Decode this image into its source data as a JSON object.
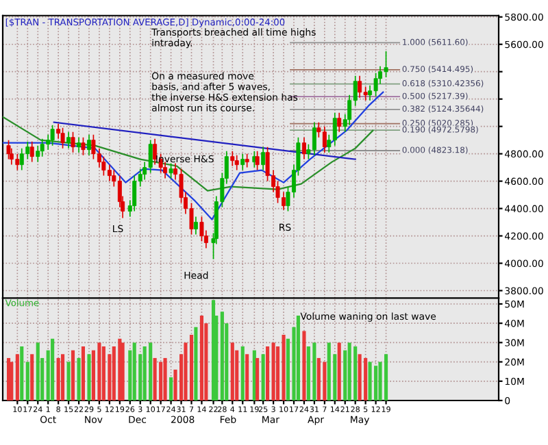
{
  "chart_data": [
    {
      "type": "candlestick",
      "title": "[$TRAN - TRANSPORTATION AVERAGE,D] Dynamic,0:00-24:00",
      "colors": [
        "#e00000",
        "#e00000",
        "#e00000",
        "#00b000",
        "#00b000",
        "#e00000",
        "#00b000",
        "#00b000",
        "#00b000",
        "#00b000",
        "#e00000",
        "#e00000",
        "#00b000",
        "#e00000",
        "#00b000",
        "#e00000",
        "#00b000",
        "#e00000",
        "#e00000",
        "#e00000",
        "#e00000",
        "#e00000",
        "#e00000",
        "#e00000",
        "#00b000",
        "#00b000",
        "#00b000",
        "#00b000",
        "#00b000",
        "#e00000",
        "#e00000",
        "#e00000",
        "#00b000",
        "#e00000",
        "#e00000",
        "#e00000",
        "#e00000",
        "#00b000",
        "#e00000",
        "#e00000",
        "#00b000",
        "#00b000",
        "#00b000",
        "#00b000",
        "#e00000",
        "#e00000",
        "#00b000",
        "#e00000",
        "#00b000",
        "#e00000",
        "#00b000",
        "#e00000",
        "#e00000",
        "#e00000",
        "#e00000",
        "#00b000",
        "#00b000",
        "#00b000",
        "#e00000",
        "#00b000",
        "#00b000",
        "#e00000",
        "#e00000",
        "#00b000",
        "#00b000",
        "#e00000",
        "#00b000",
        "#00b000",
        "#00b000",
        "#e00000",
        "#e00000",
        "#00b000",
        "#00b000",
        "#00b000",
        "#00b000"
      ],
      "grid": true,
      "tick_labels": "y",
      "x": [
        "2007-09-04",
        "2007-09-06",
        "2007-09-10",
        "2007-09-13",
        "2007-09-17",
        "2007-09-20",
        "2007-09-24",
        "2007-09-27",
        "2007-10-01",
        "2007-10-04",
        "2007-10-08",
        "2007-10-11",
        "2007-10-15",
        "2007-10-18",
        "2007-10-22",
        "2007-10-25",
        "2007-10-29",
        "2007-11-01",
        "2007-11-05",
        "2007-11-08",
        "2007-11-12",
        "2007-11-15",
        "2007-11-19",
        "2007-11-21",
        "2007-11-26",
        "2007-11-29",
        "2007-12-03",
        "2007-12-06",
        "2007-12-10",
        "2007-12-13",
        "2007-12-17",
        "2007-12-20",
        "2007-12-24",
        "2007-12-27",
        "2007-12-31",
        "2008-01-03",
        "2008-01-07",
        "2008-01-10",
        "2008-01-14",
        "2008-01-17",
        "2008-01-22",
        "2008-01-24",
        "2008-01-28",
        "2008-01-31",
        "2008-02-04",
        "2008-02-07",
        "2008-02-11",
        "2008-02-14",
        "2008-02-19",
        "2008-02-21",
        "2008-02-25",
        "2008-02-28",
        "2008-03-03",
        "2008-03-06",
        "2008-03-10",
        "2008-03-13",
        "2008-03-17",
        "2008-03-20",
        "2008-03-24",
        "2008-03-27",
        "2008-03-31",
        "2008-04-03",
        "2008-04-07",
        "2008-04-10",
        "2008-04-14",
        "2008-04-17",
        "2008-04-21",
        "2008-04-24",
        "2008-04-28",
        "2008-05-01",
        "2008-05-05",
        "2008-05-08",
        "2008-05-12",
        "2008-05-15",
        "2008-05-19"
      ],
      "ohlc": [
        [
          4860,
          4900,
          4760,
          4800
        ],
        [
          4800,
          4840,
          4720,
          4760
        ],
        [
          4760,
          4800,
          4680,
          4720
        ],
        [
          4720,
          4840,
          4680,
          4800
        ],
        [
          4800,
          4890,
          4760,
          4850
        ],
        [
          4850,
          4890,
          4740,
          4780
        ],
        [
          4780,
          4860,
          4740,
          4820
        ],
        [
          4820,
          4910,
          4780,
          4870
        ],
        [
          4870,
          4940,
          4830,
          4900
        ],
        [
          4900,
          5010,
          4860,
          4980
        ],
        [
          4980,
          5020,
          4910,
          4950
        ],
        [
          4950,
          4990,
          4840,
          4880
        ],
        [
          4880,
          4960,
          4840,
          4920
        ],
        [
          4920,
          4960,
          4810,
          4850
        ],
        [
          4850,
          4920,
          4810,
          4880
        ],
        [
          4880,
          4920,
          4790,
          4830
        ],
        [
          4830,
          4940,
          4790,
          4900
        ],
        [
          4900,
          4940,
          4760,
          4800
        ],
        [
          4800,
          4840,
          4700,
          4740
        ],
        [
          4740,
          4780,
          4640,
          4680
        ],
        [
          4680,
          4720,
          4600,
          4640
        ],
        [
          4640,
          4680,
          4560,
          4600
        ],
        [
          4600,
          4640,
          4410,
          4450
        ],
        [
          4450,
          4490,
          4330,
          4380
        ],
        [
          4380,
          4460,
          4340,
          4420
        ],
        [
          4420,
          4640,
          4380,
          4600
        ],
        [
          4600,
          4690,
          4560,
          4650
        ],
        [
          4650,
          4740,
          4610,
          4700
        ],
        [
          4700,
          4900,
          4660,
          4870
        ],
        [
          4870,
          4910,
          4720,
          4760
        ],
        [
          4760,
          4800,
          4660,
          4700
        ],
        [
          4700,
          4740,
          4620,
          4660
        ],
        [
          4660,
          4730,
          4620,
          4690
        ],
        [
          4690,
          4730,
          4610,
          4650
        ],
        [
          4650,
          4690,
          4440,
          4480
        ],
        [
          4480,
          4520,
          4360,
          4400
        ],
        [
          4400,
          4440,
          4210,
          4250
        ],
        [
          4250,
          4340,
          4210,
          4300
        ],
        [
          4300,
          4340,
          4160,
          4200
        ],
        [
          4200,
          4240,
          4110,
          4150
        ],
        [
          4150,
          4220,
          4030,
          4180
        ],
        [
          4180,
          4490,
          4140,
          4450
        ],
        [
          4450,
          4660,
          4410,
          4620
        ],
        [
          4620,
          4820,
          4580,
          4780
        ],
        [
          4780,
          4820,
          4710,
          4750
        ],
        [
          4750,
          4790,
          4680,
          4720
        ],
        [
          4720,
          4800,
          4680,
          4760
        ],
        [
          4760,
          4800,
          4700,
          4740
        ],
        [
          4740,
          4820,
          4700,
          4780
        ],
        [
          4780,
          4820,
          4680,
          4720
        ],
        [
          4720,
          4850,
          4680,
          4810
        ],
        [
          4810,
          4850,
          4600,
          4640
        ],
        [
          4640,
          4680,
          4520,
          4560
        ],
        [
          4560,
          4600,
          4440,
          4480
        ],
        [
          4480,
          4520,
          4390,
          4420
        ],
        [
          4420,
          4560,
          4380,
          4520
        ],
        [
          4520,
          4720,
          4480,
          4680
        ],
        [
          4680,
          4920,
          4640,
          4880
        ],
        [
          4880,
          4920,
          4760,
          4800
        ],
        [
          4800,
          4870,
          4760,
          4830
        ],
        [
          4830,
          5030,
          4790,
          4990
        ],
        [
          4990,
          5030,
          4920,
          4960
        ],
        [
          4960,
          5000,
          4810,
          4850
        ],
        [
          4850,
          4940,
          4810,
          4900
        ],
        [
          4900,
          5100,
          4860,
          5060
        ],
        [
          5060,
          5100,
          4960,
          5000
        ],
        [
          5000,
          5090,
          4960,
          5050
        ],
        [
          5050,
          5230,
          5010,
          5190
        ],
        [
          5190,
          5370,
          5150,
          5330
        ],
        [
          5330,
          5370,
          5210,
          5250
        ],
        [
          5250,
          5290,
          5190,
          5230
        ],
        [
          5230,
          5300,
          5190,
          5260
        ],
        [
          5260,
          5390,
          5220,
          5350
        ],
        [
          5350,
          5440,
          5310,
          5400
        ],
        [
          5400,
          5550,
          5360,
          5430
        ]
      ],
      "series": [
        {
          "type": "line",
          "color": "#2a8f2a",
          "x": [
            "2007-08-31",
            "2007-09-26",
            "2007-11-02",
            "2007-12-03",
            "2007-12-28",
            "2008-01-18",
            "2008-02-03",
            "2008-03-06",
            "2008-03-22",
            "2008-04-12",
            "2008-04-28",
            "2008-05-10"
          ],
          "values": [
            5070,
            4900,
            4860,
            4760,
            4710,
            4530,
            4560,
            4540,
            4580,
            4740,
            4840,
            4970
          ]
        },
        {
          "type": "line",
          "color": "#2040e0",
          "x": [
            "2007-08-31",
            "2007-10-01",
            "2007-11-02",
            "2007-11-23",
            "2007-12-05",
            "2007-12-18",
            "2008-01-09",
            "2008-01-21",
            "2008-02-09",
            "2008-02-24",
            "2008-03-10",
            "2008-03-28",
            "2008-04-22",
            "2008-05-07",
            "2008-05-17"
          ],
          "values": [
            4880,
            4880,
            4840,
            4590,
            4690,
            4680,
            4460,
            4320,
            4660,
            4680,
            4590,
            4760,
            4970,
            5150,
            5250
          ]
        },
        {
          "type": "line",
          "color": "#2020c0",
          "x": [
            "2007-10-05",
            "2008-04-28"
          ],
          "values": [
            5030,
            4760
          ]
        }
      ],
      "ref_lines": [
        {
          "axis": "y",
          "value": 5611.6,
          "label": "1.000 (5611.60)",
          "color": "#909090"
        },
        {
          "axis": "y",
          "value": 5414.495,
          "label": "0.750 (5414.495)",
          "color": "#a07060"
        },
        {
          "axis": "y",
          "value": 5310.42356,
          "label": "0.618 (5310.42356)",
          "color": "#80a080"
        },
        {
          "axis": "y",
          "value": 5217.39,
          "label": "0.500 (5217.39)",
          "color": "#a070a0"
        },
        {
          "axis": "y",
          "value": 5124.35644,
          "label": "0.382 (5124.35644)",
          "color": "#909090"
        },
        {
          "axis": "y",
          "value": 5020.285,
          "label": "0.250 (5020.285)",
          "color": "#a07060"
        },
        {
          "axis": "y",
          "value": 4972.5798,
          "label": "0.190 (4972.5798)",
          "color": "#80a080"
        },
        {
          "axis": "y",
          "value": 4823.18,
          "label": "0.000 (4823.18)",
          "color": "#707070"
        }
      ],
      "annotations": [
        "Transports breached all time highs\nintraday.",
        "On a measured move\nbasis, and after 5 waves,\nthe inverse H&S extension has\nalmost run its course.",
        "Inverse H&S",
        "LS",
        "Head",
        "RS"
      ],
      "xlim": [
        "2007-08-31",
        "2008-08-04"
      ],
      "ylim": [
        3745,
        5810
      ],
      "xticks": [
        "2007-09-10",
        "2007-09-17",
        "2007-09-24",
        "2007-10-01",
        "2007-10-08",
        "2007-10-15",
        "2007-10-22",
        "2007-10-29",
        "2007-11-05",
        "2007-11-12",
        "2007-11-19",
        "2007-11-26",
        "2007-12-03",
        "2007-12-10",
        "2007-12-17",
        "2007-12-24",
        "2007-12-31",
        "2008-01-07",
        "2008-01-14",
        "2008-01-22",
        "2008-01-28",
        "2008-02-04",
        "2008-02-11",
        "2008-02-19",
        "2008-02-25",
        "2008-03-03",
        "2008-03-10",
        "2008-03-17",
        "2008-03-24",
        "2008-03-31",
        "2008-04-07",
        "2008-04-14",
        "2008-04-21",
        "2008-04-28",
        "2008-05-05",
        "2008-05-12",
        "2008-05-19"
      ],
      "yticks": [
        {
          "value": 3800,
          "label": "3800.00"
        },
        {
          "value": 4000,
          "label": "4000.00"
        },
        {
          "value": 4200,
          "label": "4200.00"
        },
        {
          "value": 4400,
          "label": "4400.00"
        },
        {
          "value": 4600,
          "label": "4600.00"
        },
        {
          "value": 4800,
          "label": "4800.00"
        },
        {
          "value": 5000,
          "label": null
        },
        {
          "value": 5200,
          "label": null
        },
        {
          "value": 5400,
          "label": null
        },
        {
          "value": 5600,
          "label": "5600.00"
        },
        {
          "value": 5800,
          "label": "5800.00"
        }
      ]
    },
    {
      "type": "bar",
      "title": "Volume",
      "grid": true,
      "x": [
        "2007-09-04",
        "2007-09-06",
        "2007-09-10",
        "2007-09-13",
        "2007-09-17",
        "2007-09-20",
        "2007-09-24",
        "2007-09-27",
        "2007-10-01",
        "2007-10-04",
        "2007-10-08",
        "2007-10-11",
        "2007-10-15",
        "2007-10-18",
        "2007-10-22",
        "2007-10-25",
        "2007-10-29",
        "2007-11-01",
        "2007-11-05",
        "2007-11-08",
        "2007-11-12",
        "2007-11-15",
        "2007-11-19",
        "2007-11-21",
        "2007-11-26",
        "2007-11-29",
        "2007-12-03",
        "2007-12-06",
        "2007-12-10",
        "2007-12-13",
        "2007-12-17",
        "2007-12-20",
        "2007-12-24",
        "2007-12-27",
        "2007-12-31",
        "2008-01-03",
        "2008-01-07",
        "2008-01-10",
        "2008-01-14",
        "2008-01-17",
        "2008-01-22",
        "2008-01-24",
        "2008-01-28",
        "2008-01-31",
        "2008-02-04",
        "2008-02-07",
        "2008-02-11",
        "2008-02-14",
        "2008-02-19",
        "2008-02-21",
        "2008-02-25",
        "2008-02-28",
        "2008-03-03",
        "2008-03-06",
        "2008-03-10",
        "2008-03-13",
        "2008-03-17",
        "2008-03-20",
        "2008-03-24",
        "2008-03-27",
        "2008-03-31",
        "2008-04-03",
        "2008-04-07",
        "2008-04-10",
        "2008-04-14",
        "2008-04-17",
        "2008-04-21",
        "2008-04-24",
        "2008-04-28",
        "2008-05-01",
        "2008-05-05",
        "2008-05-08",
        "2008-05-12",
        "2008-05-15",
        "2008-05-19"
      ],
      "values": [
        22,
        20,
        24,
        28,
        20,
        24,
        30,
        22,
        26,
        32,
        22,
        24,
        20,
        26,
        22,
        28,
        24,
        26,
        30,
        28,
        24,
        28,
        32,
        30,
        26,
        30,
        24,
        28,
        30,
        22,
        20,
        22,
        12,
        16,
        24,
        30,
        34,
        38,
        44,
        40,
        52,
        44,
        46,
        40,
        30,
        26,
        28,
        24,
        26,
        22,
        24,
        28,
        30,
        28,
        34,
        32,
        38,
        44,
        36,
        28,
        30,
        22,
        20,
        30,
        24,
        30,
        26,
        30,
        28,
        24,
        22,
        20,
        18,
        20,
        24
      ],
      "colors": [
        "#e83838",
        "#e83838",
        "#e83838",
        "#3cc83c",
        "#3cc83c",
        "#e83838",
        "#3cc83c",
        "#3cc83c",
        "#3cc83c",
        "#3cc83c",
        "#e83838",
        "#e83838",
        "#3cc83c",
        "#e83838",
        "#3cc83c",
        "#e83838",
        "#3cc83c",
        "#e83838",
        "#e83838",
        "#e83838",
        "#e83838",
        "#e83838",
        "#e83838",
        "#e83838",
        "#3cc83c",
        "#3cc83c",
        "#3cc83c",
        "#3cc83c",
        "#3cc83c",
        "#e83838",
        "#e83838",
        "#e83838",
        "#3cc83c",
        "#e83838",
        "#e83838",
        "#e83838",
        "#e83838",
        "#3cc83c",
        "#e83838",
        "#e83838",
        "#3cc83c",
        "#3cc83c",
        "#3cc83c",
        "#3cc83c",
        "#e83838",
        "#e83838",
        "#3cc83c",
        "#e83838",
        "#3cc83c",
        "#e83838",
        "#3cc83c",
        "#e83838",
        "#e83838",
        "#e83838",
        "#e83838",
        "#3cc83c",
        "#3cc83c",
        "#3cc83c",
        "#e83838",
        "#3cc83c",
        "#3cc83c",
        "#e83838",
        "#e83838",
        "#3cc83c",
        "#3cc83c",
        "#e83838",
        "#3cc83c",
        "#3cc83c",
        "#3cc83c",
        "#e83838",
        "#e83838",
        "#3cc83c",
        "#3cc83c",
        "#3cc83c",
        "#3cc83c"
      ],
      "annotations": [
        "Volume waning on last wave"
      ],
      "xlim": [
        "2007-08-31",
        "2008-08-04"
      ],
      "ylim": [
        0,
        53
      ],
      "xticks": [
        {
          "value": "2007-09-10",
          "label": "10"
        },
        {
          "value": "2007-09-17",
          "label": "17"
        },
        {
          "value": "2007-09-24",
          "label": "24"
        },
        {
          "value": "2007-10-01",
          "label": "1"
        },
        {
          "value": "2007-10-08",
          "label": "8"
        },
        {
          "value": "2007-10-15",
          "label": "15"
        },
        {
          "value": "2007-10-22",
          "label": "22"
        },
        {
          "value": "2007-10-29",
          "label": "29"
        },
        {
          "value": "2007-11-05",
          "label": "5"
        },
        {
          "value": "2007-11-12",
          "label": "12"
        },
        {
          "value": "2007-11-19",
          "label": "19"
        },
        {
          "value": "2007-11-26",
          "label": "26"
        },
        {
          "value": "2007-12-03",
          "label": "3"
        },
        {
          "value": "2007-12-10",
          "label": "10"
        },
        {
          "value": "2007-12-17",
          "label": "17"
        },
        {
          "value": "2007-12-24",
          "label": "24"
        },
        {
          "value": "2007-12-31",
          "label": "31"
        },
        {
          "value": "2008-01-07",
          "label": "7"
        },
        {
          "value": "2008-01-14",
          "label": "14"
        },
        {
          "value": "2008-01-22",
          "label": "22"
        },
        {
          "value": "2008-01-28",
          "label": "28"
        },
        {
          "value": "2008-02-04",
          "label": "4"
        },
        {
          "value": "2008-02-11",
          "label": "11"
        },
        {
          "value": "2008-02-19",
          "label": "19"
        },
        {
          "value": "2008-02-25",
          "label": "25"
        },
        {
          "value": "2008-03-03",
          "label": "3"
        },
        {
          "value": "2008-03-10",
          "label": "10"
        },
        {
          "value": "2008-03-17",
          "label": "17"
        },
        {
          "value": "2008-03-24",
          "label": "24"
        },
        {
          "value": "2008-03-31",
          "label": "31"
        },
        {
          "value": "2008-04-07",
          "label": "7"
        },
        {
          "value": "2008-04-14",
          "label": "14"
        },
        {
          "value": "2008-04-21",
          "label": "21"
        },
        {
          "value": "2008-04-28",
          "label": "28"
        },
        {
          "value": "2008-05-05",
          "label": "5"
        },
        {
          "value": "2008-05-12",
          "label": "12"
        },
        {
          "value": "2008-05-19",
          "label": "19"
        }
      ],
      "x2lim": [
        "2007-08-31",
        "2008-08-04"
      ],
      "x2ticks": [
        {
          "value": "2007-10",
          "label": "Oct"
        },
        {
          "value": "2007-11",
          "label": "Nov"
        },
        {
          "value": "2007-12",
          "label": "Dec"
        },
        {
          "value": "2008",
          "label": "2008"
        },
        {
          "value": "2008-02",
          "label": "Feb"
        },
        {
          "value": "2008-03",
          "label": "Mar"
        },
        {
          "value": "2008-04",
          "label": "Apr"
        },
        {
          "value": "2008-05",
          "label": "May"
        }
      ],
      "yticks": [
        0,
        {
          "value": 10,
          "label": "10M"
        },
        {
          "value": 20,
          "label": "20M"
        },
        {
          "value": 30,
          "label": "30M"
        },
        {
          "value": 40,
          "label": "40M"
        },
        {
          "value": 50,
          "label": "50M"
        }
      ]
    }
  ]
}
